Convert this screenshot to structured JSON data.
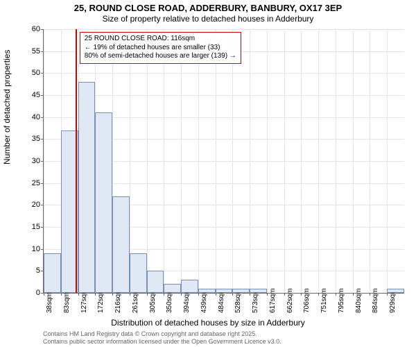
{
  "chart": {
    "type": "histogram",
    "title_main": "25, ROUND CLOSE ROAD, ADDERBURY, BANBURY, OX17 3EP",
    "title_sub": "Size of property relative to detached houses in Adderbury",
    "x_label": "Distribution of detached houses by size in Adderbury",
    "y_label": "Number of detached properties",
    "background_color": "#ffffff",
    "grid_color": "#e5e5e5",
    "bar_fill": "#e0e8f5",
    "bar_border": "#7a8fb5",
    "reference_line_color": "#cc0000",
    "y_axis": {
      "min": 0,
      "max": 60,
      "tick_step": 5,
      "ticks": [
        0,
        5,
        10,
        15,
        20,
        25,
        30,
        35,
        40,
        45,
        50,
        55,
        60
      ]
    },
    "x_axis": {
      "categories": [
        "38sqm",
        "83sqm",
        "127sqm",
        "172sqm",
        "216sqm",
        "261sqm",
        "305sqm",
        "350sqm",
        "394sqm",
        "439sqm",
        "484sqm",
        "528sqm",
        "573sqm",
        "617sqm",
        "662sqm",
        "706sqm",
        "751sqm",
        "795sqm",
        "840sqm",
        "884sqm",
        "929sqm"
      ]
    },
    "bars": [
      9,
      37,
      48,
      41,
      22,
      9,
      5,
      2,
      3,
      1,
      1,
      1,
      1,
      0,
      0,
      0,
      0,
      0,
      0,
      0,
      1
    ],
    "reference_x_index": 1.85,
    "annotation": {
      "line1": "25 ROUND CLOSE ROAD: 116sqm",
      "line2": "← 19% of detached houses are smaller (33)",
      "line3": "80% of semi-detached houses are larger (139) →"
    },
    "attribution_line1": "Contains HM Land Registry data © Crown copyright and database right 2025.",
    "attribution_line2": "Contains public sector information licensed under the Open Government Licence v3.0."
  }
}
